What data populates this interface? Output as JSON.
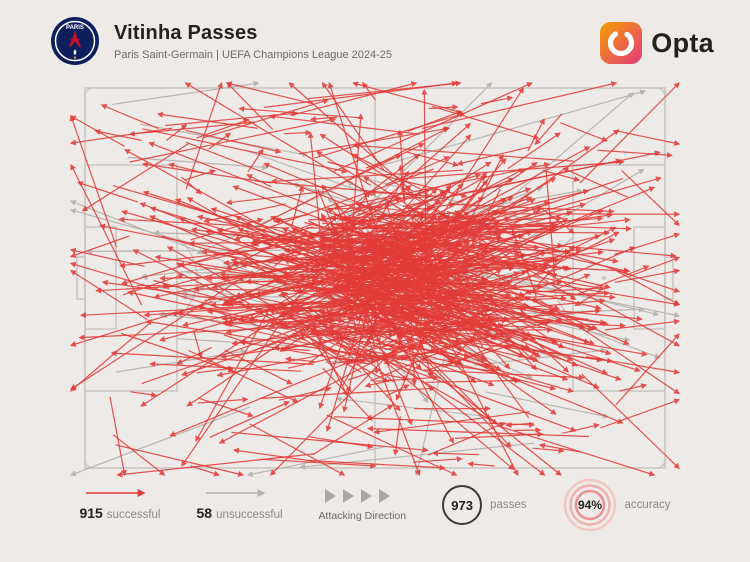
{
  "header": {
    "title": "Vitinha Passes",
    "subtitle": "Paris Saint-Germain | UEFA Champions League 2024-25",
    "crest_text": "PARIS",
    "brand": "Opta"
  },
  "legend": {
    "successful_value": "915",
    "successful_label": "successful",
    "unsuccessful_value": "58",
    "unsuccessful_label": "unsuccessful",
    "attacking_direction_label": "Attacking Direction",
    "passes_value": "973",
    "passes_label": "passes",
    "accuracy_value": "94%",
    "accuracy_label": "accuracy"
  },
  "colors": {
    "background": "#edeae7",
    "pitch_line": "#c9c5c1",
    "successful": "#e23b38",
    "unsuccessful": "#b7b3ae",
    "text_dark": "#232220",
    "text_gray": "#8d8984",
    "opta_gradient_start": "#f79e00",
    "opta_gradient_end": "#e23a7d",
    "psg_navy": "#0d1f5c",
    "psg_red": "#c8102e"
  },
  "chart_data": {
    "type": "pass_map",
    "title": "Vitinha Passes",
    "player": "Vitinha",
    "team": "Paris Saint-Germain",
    "competition": "UEFA Champions League 2024-25",
    "successful_passes": 915,
    "unsuccessful_passes": 58,
    "total_passes": 973,
    "pass_accuracy_pct": 94,
    "attacking_direction": "left-to-right",
    "pitch": {
      "orientation": "horizontal"
    },
    "render": {
      "seed": 7,
      "successful_count": 915,
      "unsuccessful_count": 58
    }
  }
}
